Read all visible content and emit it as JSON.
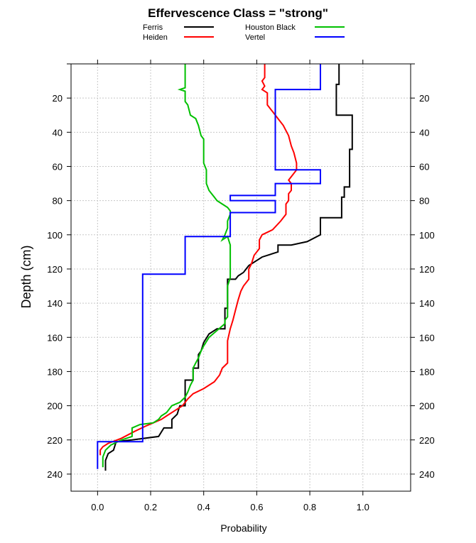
{
  "chart_data": {
    "type": "line",
    "title": "Effervescence Class = \"strong\"",
    "xlabel": "Probability",
    "ylabel": "Depth (cm)",
    "xlim": [
      -0.1,
      1.18
    ],
    "ylim": [
      250,
      0
    ],
    "x_ticks": [
      "0.0",
      "0.2",
      "0.4",
      "0.6",
      "0.8",
      "1.0"
    ],
    "y_ticks": [
      "20",
      "40",
      "60",
      "80",
      "100",
      "120",
      "140",
      "160",
      "180",
      "200",
      "220",
      "240"
    ],
    "grid": true,
    "legend_position": "top",
    "series": [
      {
        "name": "Ferris",
        "color": "#000000",
        "points": [
          [
            0.91,
            0
          ],
          [
            0.91,
            12
          ],
          [
            0.9,
            12
          ],
          [
            0.9,
            30
          ],
          [
            0.96,
            30
          ],
          [
            0.96,
            50
          ],
          [
            0.95,
            50
          ],
          [
            0.95,
            72
          ],
          [
            0.93,
            72
          ],
          [
            0.93,
            78
          ],
          [
            0.92,
            78
          ],
          [
            0.92,
            90
          ],
          [
            0.84,
            90
          ],
          [
            0.84,
            100
          ],
          [
            0.79,
            104
          ],
          [
            0.73,
            106
          ],
          [
            0.68,
            106
          ],
          [
            0.68,
            110
          ],
          [
            0.62,
            113
          ],
          [
            0.57,
            118
          ],
          [
            0.55,
            122
          ],
          [
            0.53,
            124
          ],
          [
            0.52,
            126
          ],
          [
            0.49,
            126
          ],
          [
            0.49,
            143
          ],
          [
            0.48,
            143
          ],
          [
            0.48,
            155
          ],
          [
            0.45,
            155
          ],
          [
            0.42,
            158
          ],
          [
            0.4,
            163
          ],
          [
            0.39,
            168
          ],
          [
            0.38,
            170
          ],
          [
            0.38,
            178
          ],
          [
            0.36,
            178
          ],
          [
            0.36,
            185
          ],
          [
            0.33,
            185
          ],
          [
            0.33,
            200
          ],
          [
            0.31,
            200
          ],
          [
            0.3,
            205
          ],
          [
            0.28,
            208
          ],
          [
            0.28,
            213
          ],
          [
            0.25,
            213
          ],
          [
            0.23,
            218
          ],
          [
            0.13,
            220
          ],
          [
            0.07,
            221
          ],
          [
            0.06,
            226
          ],
          [
            0.04,
            228
          ],
          [
            0.03,
            232
          ],
          [
            0.03,
            238
          ]
        ]
      },
      {
        "name": "Heiden",
        "color": "#ff0000",
        "points": [
          [
            0.63,
            0
          ],
          [
            0.63,
            8
          ],
          [
            0.62,
            10
          ],
          [
            0.63,
            13
          ],
          [
            0.62,
            15
          ],
          [
            0.64,
            17
          ],
          [
            0.64,
            24
          ],
          [
            0.66,
            28
          ],
          [
            0.68,
            32
          ],
          [
            0.7,
            36
          ],
          [
            0.72,
            42
          ],
          [
            0.73,
            48
          ],
          [
            0.74,
            52
          ],
          [
            0.75,
            58
          ],
          [
            0.75,
            62
          ],
          [
            0.74,
            64
          ],
          [
            0.73,
            66
          ],
          [
            0.72,
            68
          ],
          [
            0.73,
            70
          ],
          [
            0.73,
            74
          ],
          [
            0.72,
            76
          ],
          [
            0.72,
            80
          ],
          [
            0.71,
            82
          ],
          [
            0.71,
            88
          ],
          [
            0.69,
            92
          ],
          [
            0.66,
            97
          ],
          [
            0.62,
            100
          ],
          [
            0.61,
            103
          ],
          [
            0.61,
            108
          ],
          [
            0.59,
            112
          ],
          [
            0.58,
            117
          ],
          [
            0.57,
            120
          ],
          [
            0.57,
            126
          ],
          [
            0.55,
            130
          ],
          [
            0.54,
            133
          ],
          [
            0.53,
            138
          ],
          [
            0.52,
            144
          ],
          [
            0.51,
            150
          ],
          [
            0.5,
            155
          ],
          [
            0.49,
            162
          ],
          [
            0.49,
            168
          ],
          [
            0.49,
            175
          ],
          [
            0.47,
            178
          ],
          [
            0.46,
            182
          ],
          [
            0.44,
            186
          ],
          [
            0.4,
            190
          ],
          [
            0.36,
            193
          ],
          [
            0.34,
            196
          ],
          [
            0.33,
            198
          ],
          [
            0.32,
            200
          ],
          [
            0.29,
            203
          ],
          [
            0.26,
            206
          ],
          [
            0.24,
            208
          ],
          [
            0.21,
            210
          ],
          [
            0.18,
            212
          ],
          [
            0.14,
            215
          ],
          [
            0.09,
            219
          ],
          [
            0.04,
            222
          ],
          [
            0.02,
            224
          ],
          [
            0.01,
            226
          ],
          [
            0.01,
            229
          ]
        ]
      },
      {
        "name": "Houston Black",
        "color": "#00c000",
        "points": [
          [
            0.33,
            0
          ],
          [
            0.33,
            14
          ],
          [
            0.31,
            15
          ],
          [
            0.33,
            16
          ],
          [
            0.33,
            22
          ],
          [
            0.34,
            24
          ],
          [
            0.35,
            30
          ],
          [
            0.37,
            32
          ],
          [
            0.38,
            36
          ],
          [
            0.39,
            42
          ],
          [
            0.4,
            44
          ],
          [
            0.4,
            58
          ],
          [
            0.41,
            62
          ],
          [
            0.41,
            70
          ],
          [
            0.42,
            74
          ],
          [
            0.43,
            76
          ],
          [
            0.44,
            78
          ],
          [
            0.45,
            80
          ],
          [
            0.47,
            82
          ],
          [
            0.49,
            84
          ],
          [
            0.5,
            86
          ],
          [
            0.5,
            88
          ],
          [
            0.49,
            92
          ],
          [
            0.49,
            96
          ],
          [
            0.48,
            100
          ],
          [
            0.47,
            103
          ],
          [
            0.49,
            101
          ],
          [
            0.5,
            106
          ],
          [
            0.5,
            112
          ],
          [
            0.5,
            125
          ],
          [
            0.49,
            130
          ],
          [
            0.49,
            148
          ],
          [
            0.48,
            150
          ],
          [
            0.48,
            152
          ],
          [
            0.45,
            156
          ],
          [
            0.42,
            160
          ],
          [
            0.4,
            165
          ],
          [
            0.39,
            168
          ],
          [
            0.38,
            172
          ],
          [
            0.37,
            175
          ],
          [
            0.36,
            178
          ],
          [
            0.36,
            185
          ],
          [
            0.35,
            188
          ],
          [
            0.34,
            192
          ],
          [
            0.33,
            195
          ],
          [
            0.31,
            198
          ],
          [
            0.28,
            200
          ],
          [
            0.26,
            204
          ],
          [
            0.24,
            206
          ],
          [
            0.23,
            208
          ],
          [
            0.21,
            210
          ],
          [
            0.16,
            211
          ],
          [
            0.13,
            213
          ],
          [
            0.13,
            218
          ],
          [
            0.09,
            220
          ],
          [
            0.05,
            223
          ],
          [
            0.03,
            226
          ],
          [
            0.02,
            230
          ],
          [
            0.02,
            236
          ]
        ]
      },
      {
        "name": "Vertel",
        "color": "#0000ff",
        "points": [
          [
            0.84,
            0
          ],
          [
            0.84,
            15
          ],
          [
            0.67,
            15
          ],
          [
            0.67,
            62
          ],
          [
            0.84,
            62
          ],
          [
            0.84,
            70
          ],
          [
            0.67,
            70
          ],
          [
            0.67,
            77
          ],
          [
            0.5,
            77
          ],
          [
            0.5,
            80
          ],
          [
            0.67,
            80
          ],
          [
            0.67,
            87
          ],
          [
            0.5,
            87
          ],
          [
            0.5,
            101
          ],
          [
            0.33,
            101
          ],
          [
            0.33,
            123
          ],
          [
            0.17,
            123
          ],
          [
            0.17,
            221
          ],
          [
            0.0,
            221
          ],
          [
            0.0,
            237
          ]
        ]
      }
    ]
  }
}
